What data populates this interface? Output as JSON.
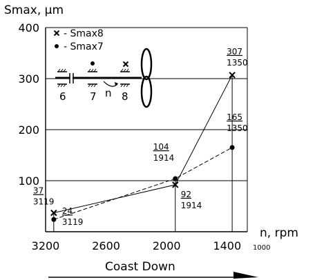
{
  "chart_data": {
    "type": "line",
    "ylabel": "Smax, μm",
    "xlabel": "n, rpm",
    "x_extra_tick": "1000",
    "caption": "Coast Down",
    "xlim": [
      3200,
      1200
    ],
    "ylim": [
      0,
      400
    ],
    "x_ticks": [
      3200,
      2600,
      2000,
      1400
    ],
    "y_ticks": [
      100,
      200,
      300,
      400
    ],
    "grid": true,
    "legend": [
      {
        "marker": "x",
        "label": "- Smax8"
      },
      {
        "marker": "dot",
        "label": "- Smax7"
      }
    ],
    "series": [
      {
        "name": "Smax8",
        "marker": "x",
        "line": "solid",
        "points": [
          {
            "x": 3119,
            "y": 37,
            "label_top": "37",
            "label_bottom": "3119"
          },
          {
            "x": 1914,
            "y": 92,
            "label_top": "92",
            "label_bottom": "1914"
          },
          {
            "x": 1350,
            "y": 307,
            "label_top": "307",
            "label_bottom": "1350"
          }
        ]
      },
      {
        "name": "Smax7",
        "marker": "dot",
        "line": "dashed",
        "points": [
          {
            "x": 3119,
            "y": 24,
            "label_top": "24",
            "label_bottom": "3119"
          },
          {
            "x": 1914,
            "y": 104,
            "label_top": "104",
            "label_bottom": "1914"
          },
          {
            "x": 1350,
            "y": 165,
            "label_top": "165",
            "label_bottom": "1350"
          }
        ]
      }
    ]
  },
  "inset": {
    "bearing_labels": [
      "6",
      "7",
      "8"
    ],
    "speed_label": "n"
  }
}
